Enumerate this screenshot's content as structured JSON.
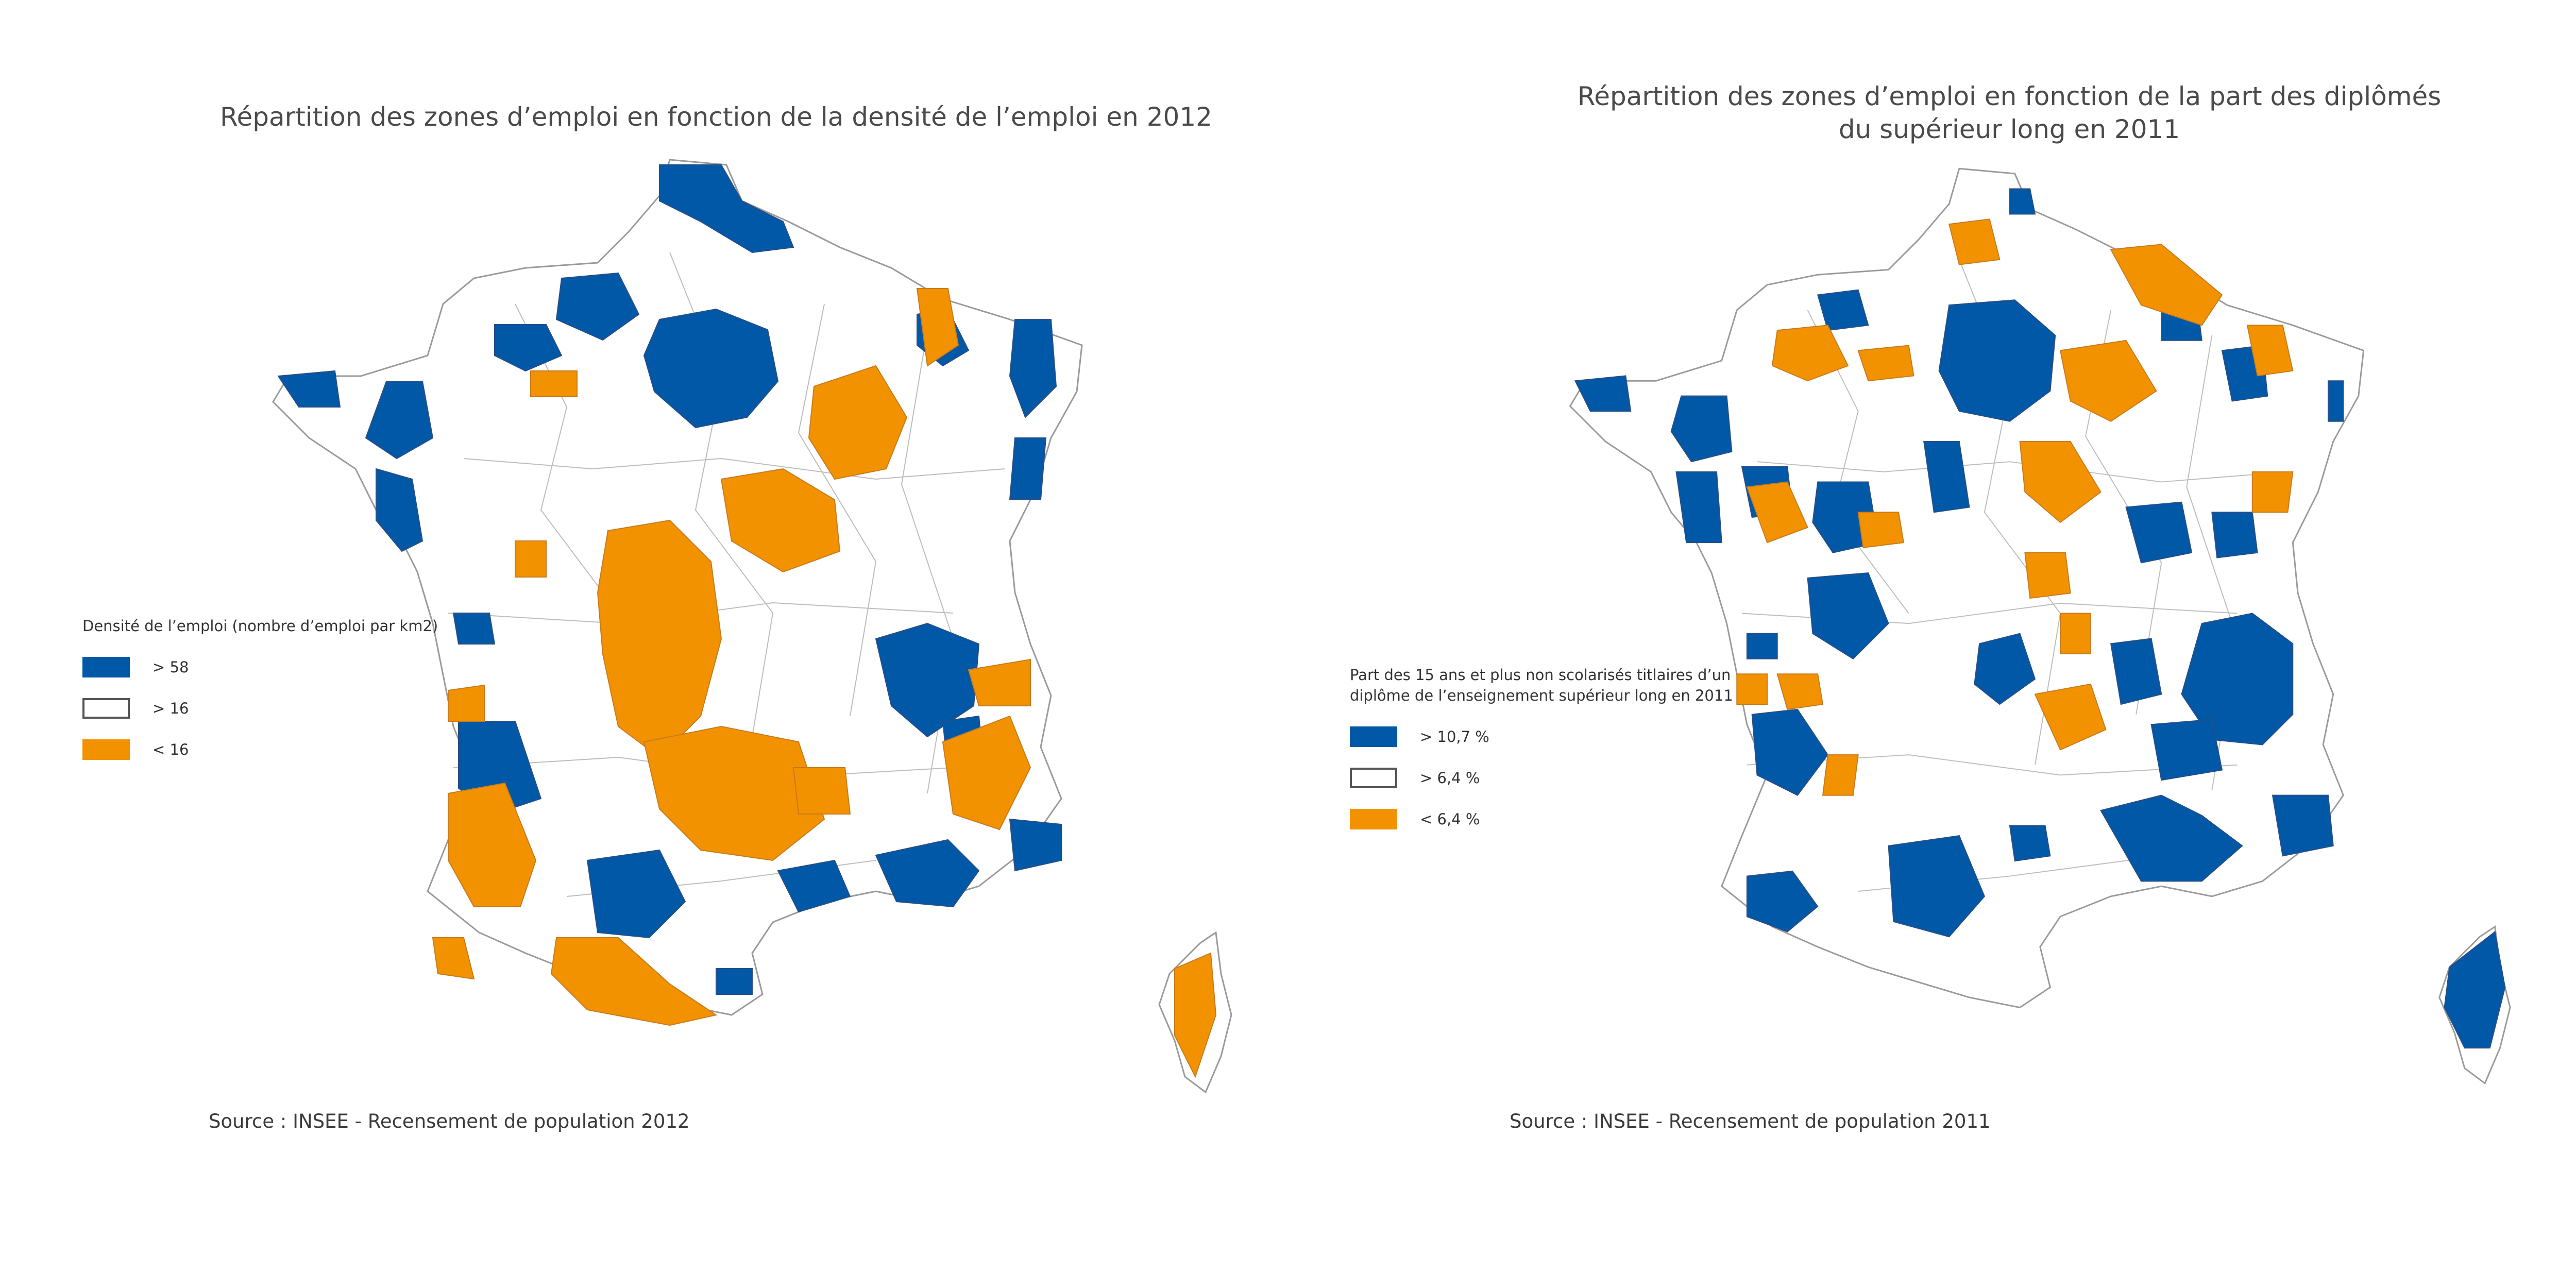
{
  "colors": {
    "high": "#0058a6",
    "mid": "#ffffff",
    "low": "#f39200",
    "border": "#9a9a9a",
    "text": "#3a3a3a"
  },
  "maps": [
    {
      "title": "Répartition des zones d’emploi en fonction de la densité de l’emploi en 2012",
      "legend_title": "Densité de l’emploi (nombre d’emploi par km2)",
      "legend": [
        {
          "label": "> 58",
          "class": "high"
        },
        {
          "label": "> 16",
          "class": "mid"
        },
        {
          "label": "< 16",
          "class": "low"
        }
      ],
      "source": "Source : INSEE - Recensement de population 2012"
    },
    {
      "title": "Répartition des zones d’emploi en fonction de la part des diplômés du supérieur long en 2011",
      "legend_title": "Part des 15 ans et plus non scolarisés titlaires d’un diplôme de l’enseignement supérieur long en 2011",
      "legend": [
        {
          "label": "> 10,7 %",
          "class": "high"
        },
        {
          "label": "> 6,4 %",
          "class": "mid"
        },
        {
          "label": "< 6,4 %",
          "class": "low"
        }
      ],
      "source": "Source : INSEE - Recensement de population 2011"
    }
  ]
}
